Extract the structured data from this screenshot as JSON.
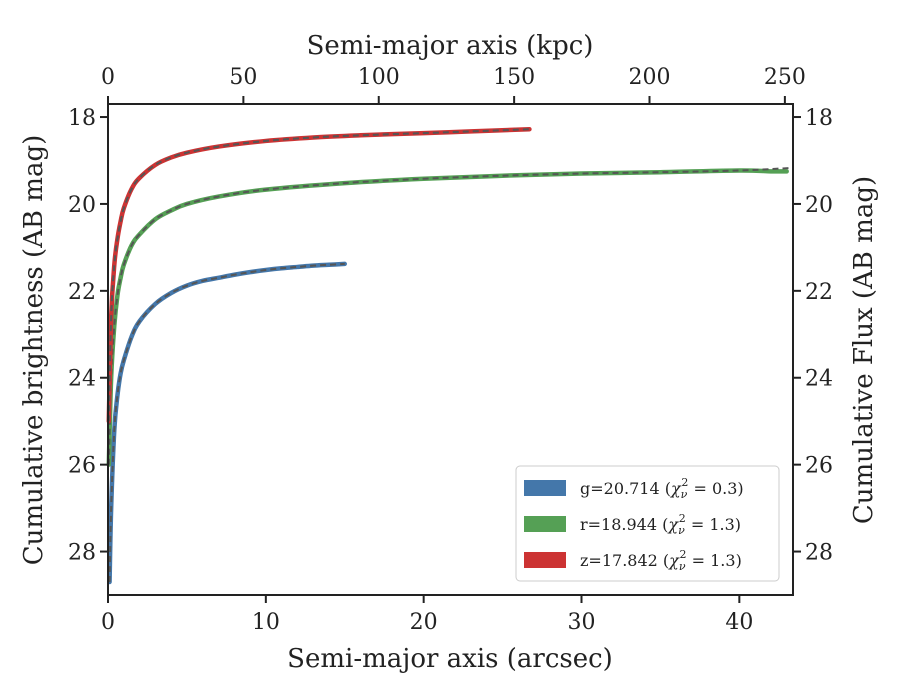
{
  "chart_data": {
    "type": "line",
    "xlabel": "Semi-major axis (arcsec)",
    "ylabel": "Cumulative brightness (AB mag)",
    "top_xlabel": "Semi-major axis (kpc)",
    "right_ylabel": "Cumulative Flux (AB mag)",
    "xlim": [
      0,
      43.4
    ],
    "ylim": [
      29.0,
      17.7
    ],
    "y_inverted": true,
    "top_xlim": [
      0,
      253
    ],
    "xticks": [
      0,
      10,
      20,
      30,
      40
    ],
    "yticks": [
      18,
      20,
      22,
      24,
      26,
      28
    ],
    "top_xticks": [
      0,
      50,
      100,
      150,
      200,
      250
    ],
    "grid": false,
    "legend_position": "lower right",
    "series": [
      {
        "key": "g",
        "color": "#4477aa",
        "legend": {
          "main": "g=20.714 (",
          "chi": "χ",
          "sub": "ν",
          "sup": "2",
          "rest": " = 0.3)"
        },
        "x": [
          0.1,
          0.2,
          0.4,
          0.6,
          0.8,
          1.0,
          1.5,
          2.0,
          3.0,
          4.0,
          5.0,
          6.0,
          7.0,
          8.0,
          9.0,
          10.0,
          11.0,
          12.0,
          13.0,
          14.0,
          15.0
        ],
        "y": [
          28.7,
          27.0,
          25.2,
          24.4,
          23.9,
          23.6,
          23.05,
          22.7,
          22.3,
          22.05,
          21.88,
          21.77,
          21.7,
          21.63,
          21.57,
          21.52,
          21.48,
          21.45,
          21.42,
          21.4,
          21.38
        ]
      },
      {
        "key": "r",
        "color": "#55a055",
        "legend": {
          "main": "r=18.944 (",
          "chi": "χ",
          "sub": "ν",
          "sup": "2",
          "rest": " = 1.3)"
        },
        "x": [
          0.05,
          0.2,
          0.4,
          0.6,
          0.8,
          1.0,
          1.5,
          2.0,
          3.0,
          4.0,
          5.0,
          7.0,
          10.0,
          15.0,
          20.0,
          25.0,
          30.0,
          35.0,
          40.0,
          42.0,
          43.0
        ],
        "y": [
          26.0,
          24.0,
          22.8,
          22.1,
          21.7,
          21.4,
          20.95,
          20.7,
          20.35,
          20.15,
          20.0,
          19.83,
          19.67,
          19.52,
          19.42,
          19.35,
          19.3,
          19.27,
          19.23,
          19.25,
          19.25
        ]
      },
      {
        "key": "z",
        "color": "#cc3333",
        "legend": {
          "main": "z=17.842 (",
          "chi": "χ",
          "sub": "ν",
          "sup": "2",
          "rest": " = 1.3)"
        },
        "x": [
          0.05,
          0.2,
          0.4,
          0.6,
          0.8,
          1.0,
          1.5,
          2.0,
          3.0,
          4.0,
          5.0,
          7.0,
          10.0,
          13.0,
          16.0,
          20.0,
          23.0,
          26.7
        ],
        "y": [
          25.0,
          22.6,
          21.4,
          20.8,
          20.4,
          20.1,
          19.65,
          19.4,
          19.1,
          18.93,
          18.82,
          18.68,
          18.55,
          18.47,
          18.42,
          18.37,
          18.33,
          18.28
        ]
      }
    ],
    "model": {
      "color": "#555555",
      "style": "dashed",
      "extends_to_x": 43.4,
      "extends_y": 19.17
    }
  }
}
